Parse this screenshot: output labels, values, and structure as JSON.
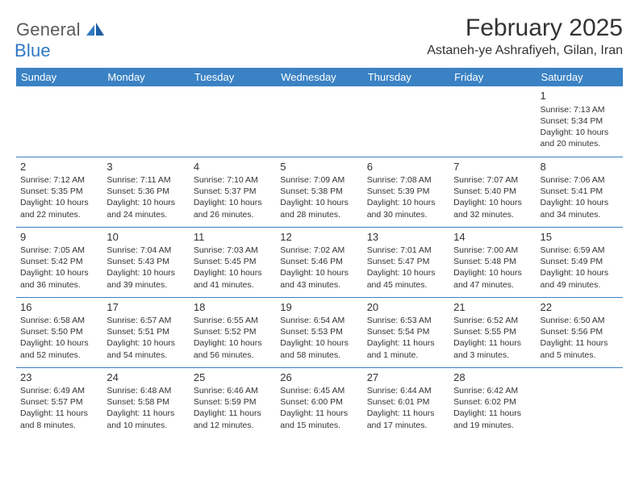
{
  "logo": {
    "text_general": "General",
    "text_blue": "Blue",
    "shape_color": "#2f78c3"
  },
  "header": {
    "month_title": "February 2025",
    "location": "Astaneh-ye Ashrafiyeh, Gilan, Iran"
  },
  "colors": {
    "header_row_bg": "#3a82c4",
    "header_row_text": "#ffffff",
    "border": "#3a82c4",
    "text": "#333333",
    "background": "#ffffff"
  },
  "weekdays": [
    "Sunday",
    "Monday",
    "Tuesday",
    "Wednesday",
    "Thursday",
    "Friday",
    "Saturday"
  ],
  "weeks": [
    [
      null,
      null,
      null,
      null,
      null,
      null,
      {
        "n": "1",
        "sr": "Sunrise: 7:13 AM",
        "ss": "Sunset: 5:34 PM",
        "dl1": "Daylight: 10 hours",
        "dl2": "and 20 minutes."
      }
    ],
    [
      {
        "n": "2",
        "sr": "Sunrise: 7:12 AM",
        "ss": "Sunset: 5:35 PM",
        "dl1": "Daylight: 10 hours",
        "dl2": "and 22 minutes."
      },
      {
        "n": "3",
        "sr": "Sunrise: 7:11 AM",
        "ss": "Sunset: 5:36 PM",
        "dl1": "Daylight: 10 hours",
        "dl2": "and 24 minutes."
      },
      {
        "n": "4",
        "sr": "Sunrise: 7:10 AM",
        "ss": "Sunset: 5:37 PM",
        "dl1": "Daylight: 10 hours",
        "dl2": "and 26 minutes."
      },
      {
        "n": "5",
        "sr": "Sunrise: 7:09 AM",
        "ss": "Sunset: 5:38 PM",
        "dl1": "Daylight: 10 hours",
        "dl2": "and 28 minutes."
      },
      {
        "n": "6",
        "sr": "Sunrise: 7:08 AM",
        "ss": "Sunset: 5:39 PM",
        "dl1": "Daylight: 10 hours",
        "dl2": "and 30 minutes."
      },
      {
        "n": "7",
        "sr": "Sunrise: 7:07 AM",
        "ss": "Sunset: 5:40 PM",
        "dl1": "Daylight: 10 hours",
        "dl2": "and 32 minutes."
      },
      {
        "n": "8",
        "sr": "Sunrise: 7:06 AM",
        "ss": "Sunset: 5:41 PM",
        "dl1": "Daylight: 10 hours",
        "dl2": "and 34 minutes."
      }
    ],
    [
      {
        "n": "9",
        "sr": "Sunrise: 7:05 AM",
        "ss": "Sunset: 5:42 PM",
        "dl1": "Daylight: 10 hours",
        "dl2": "and 36 minutes."
      },
      {
        "n": "10",
        "sr": "Sunrise: 7:04 AM",
        "ss": "Sunset: 5:43 PM",
        "dl1": "Daylight: 10 hours",
        "dl2": "and 39 minutes."
      },
      {
        "n": "11",
        "sr": "Sunrise: 7:03 AM",
        "ss": "Sunset: 5:45 PM",
        "dl1": "Daylight: 10 hours",
        "dl2": "and 41 minutes."
      },
      {
        "n": "12",
        "sr": "Sunrise: 7:02 AM",
        "ss": "Sunset: 5:46 PM",
        "dl1": "Daylight: 10 hours",
        "dl2": "and 43 minutes."
      },
      {
        "n": "13",
        "sr": "Sunrise: 7:01 AM",
        "ss": "Sunset: 5:47 PM",
        "dl1": "Daylight: 10 hours",
        "dl2": "and 45 minutes."
      },
      {
        "n": "14",
        "sr": "Sunrise: 7:00 AM",
        "ss": "Sunset: 5:48 PM",
        "dl1": "Daylight: 10 hours",
        "dl2": "and 47 minutes."
      },
      {
        "n": "15",
        "sr": "Sunrise: 6:59 AM",
        "ss": "Sunset: 5:49 PM",
        "dl1": "Daylight: 10 hours",
        "dl2": "and 49 minutes."
      }
    ],
    [
      {
        "n": "16",
        "sr": "Sunrise: 6:58 AM",
        "ss": "Sunset: 5:50 PM",
        "dl1": "Daylight: 10 hours",
        "dl2": "and 52 minutes."
      },
      {
        "n": "17",
        "sr": "Sunrise: 6:57 AM",
        "ss": "Sunset: 5:51 PM",
        "dl1": "Daylight: 10 hours",
        "dl2": "and 54 minutes."
      },
      {
        "n": "18",
        "sr": "Sunrise: 6:55 AM",
        "ss": "Sunset: 5:52 PM",
        "dl1": "Daylight: 10 hours",
        "dl2": "and 56 minutes."
      },
      {
        "n": "19",
        "sr": "Sunrise: 6:54 AM",
        "ss": "Sunset: 5:53 PM",
        "dl1": "Daylight: 10 hours",
        "dl2": "and 58 minutes."
      },
      {
        "n": "20",
        "sr": "Sunrise: 6:53 AM",
        "ss": "Sunset: 5:54 PM",
        "dl1": "Daylight: 11 hours",
        "dl2": "and 1 minute."
      },
      {
        "n": "21",
        "sr": "Sunrise: 6:52 AM",
        "ss": "Sunset: 5:55 PM",
        "dl1": "Daylight: 11 hours",
        "dl2": "and 3 minutes."
      },
      {
        "n": "22",
        "sr": "Sunrise: 6:50 AM",
        "ss": "Sunset: 5:56 PM",
        "dl1": "Daylight: 11 hours",
        "dl2": "and 5 minutes."
      }
    ],
    [
      {
        "n": "23",
        "sr": "Sunrise: 6:49 AM",
        "ss": "Sunset: 5:57 PM",
        "dl1": "Daylight: 11 hours",
        "dl2": "and 8 minutes."
      },
      {
        "n": "24",
        "sr": "Sunrise: 6:48 AM",
        "ss": "Sunset: 5:58 PM",
        "dl1": "Daylight: 11 hours",
        "dl2": "and 10 minutes."
      },
      {
        "n": "25",
        "sr": "Sunrise: 6:46 AM",
        "ss": "Sunset: 5:59 PM",
        "dl1": "Daylight: 11 hours",
        "dl2": "and 12 minutes."
      },
      {
        "n": "26",
        "sr": "Sunrise: 6:45 AM",
        "ss": "Sunset: 6:00 PM",
        "dl1": "Daylight: 11 hours",
        "dl2": "and 15 minutes."
      },
      {
        "n": "27",
        "sr": "Sunrise: 6:44 AM",
        "ss": "Sunset: 6:01 PM",
        "dl1": "Daylight: 11 hours",
        "dl2": "and 17 minutes."
      },
      {
        "n": "28",
        "sr": "Sunrise: 6:42 AM",
        "ss": "Sunset: 6:02 PM",
        "dl1": "Daylight: 11 hours",
        "dl2": "and 19 minutes."
      },
      null
    ]
  ]
}
